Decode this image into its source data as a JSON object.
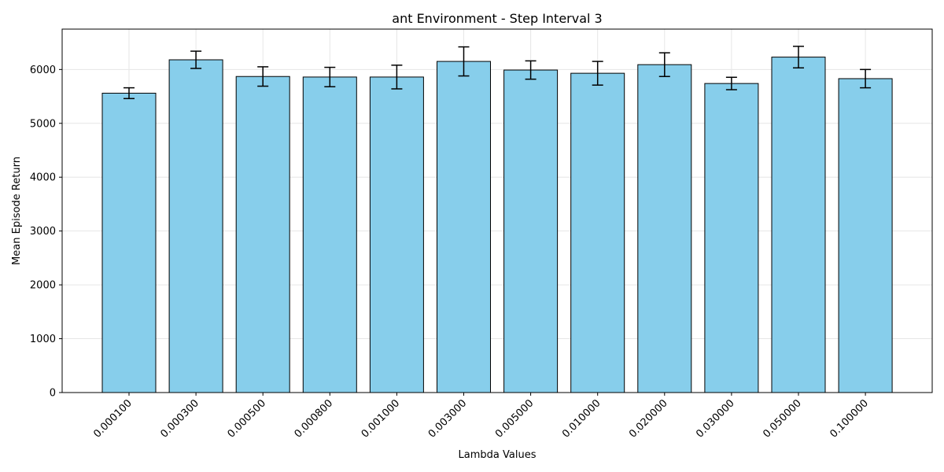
{
  "chart_data": {
    "type": "bar",
    "title": "ant Environment - Step Interval 3",
    "xlabel": "Lambda Values",
    "ylabel": "Mean Episode Return",
    "categories": [
      "0.000100",
      "0.000300",
      "0.000500",
      "0.000800",
      "0.001000",
      "0.003000",
      "0.005000",
      "0.010000",
      "0.020000",
      "0.030000",
      "0.050000",
      "0.100000"
    ],
    "values": [
      5560,
      6180,
      5870,
      5860,
      5860,
      6150,
      5990,
      5930,
      6090,
      5740,
      6230,
      5830
    ],
    "errors": [
      100,
      160,
      180,
      180,
      220,
      270,
      170,
      220,
      220,
      115,
      200,
      170
    ],
    "ylim": [
      0,
      6750
    ],
    "yticks": [
      0,
      1000,
      2000,
      3000,
      4000,
      5000,
      6000
    ],
    "grid": true,
    "colors": {
      "bar_fill": "#87ceeb",
      "bar_edge": "#000000",
      "error_bar": "#000000",
      "grid": "#e6e6e6"
    }
  }
}
